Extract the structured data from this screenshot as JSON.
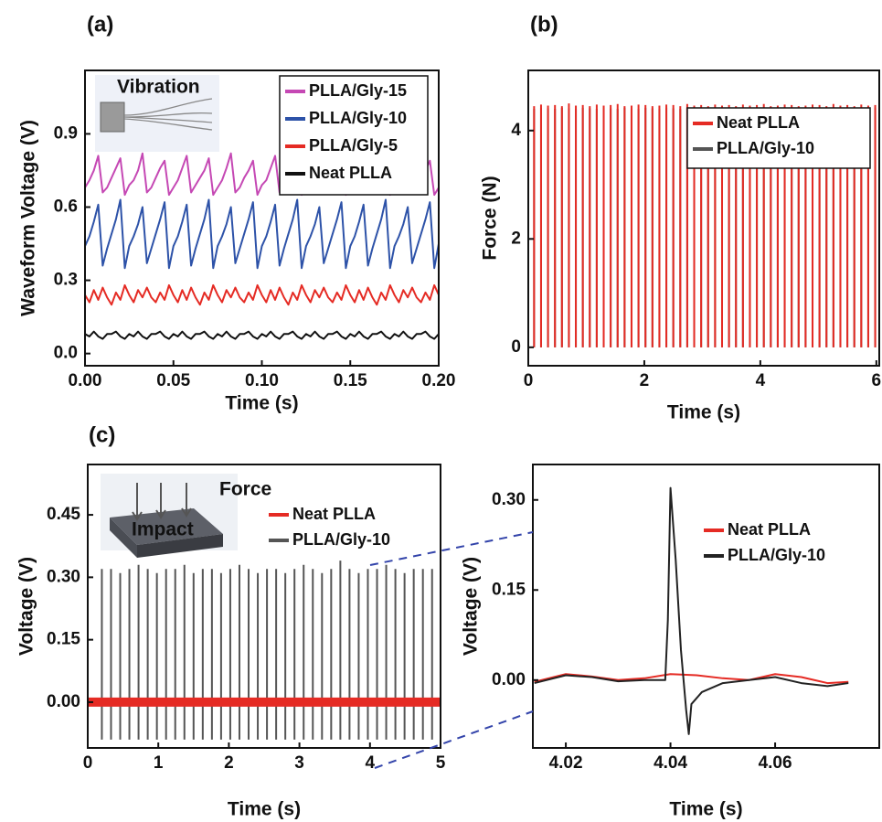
{
  "chart_data": [
    {
      "type": "line",
      "title": "(a)",
      "xlabel": "Time (s)",
      "ylabel": "Waveform Voltage (V)",
      "annotations": [
        "Vibration"
      ],
      "xlim": [
        0,
        0.2
      ],
      "ylim": [
        -0.05,
        1.16
      ],
      "xticks": [
        {
          "value": 0,
          "label": "0.00"
        },
        {
          "value": 0.05,
          "label": "0.05"
        },
        {
          "value": 0.1,
          "label": "0.10"
        },
        {
          "value": 0.15,
          "label": "0.15"
        },
        {
          "value": 0.2,
          "label": "0.20"
        }
      ],
      "yticks": [
        {
          "value": 0,
          "label": "0.0"
        },
        0.3,
        0.6,
        0.9
      ],
      "legend": "upper right",
      "x": [
        0,
        0.0025,
        0.005,
        0.0075,
        0.01,
        0.0125,
        0.015,
        0.0175,
        0.02,
        0.0225,
        0.025,
        0.0275,
        0.03,
        0.0325,
        0.035,
        0.0375,
        0.04,
        0.0425,
        0.045,
        0.0475,
        0.05,
        0.0525,
        0.055,
        0.0575,
        0.06,
        0.0625,
        0.065,
        0.0675,
        0.07,
        0.0725,
        0.075,
        0.0775,
        0.08,
        0.0825,
        0.085,
        0.0875,
        0.09,
        0.0925,
        0.095,
        0.0975,
        0.1,
        0.1025,
        0.105,
        0.1075,
        0.11,
        0.1125,
        0.115,
        0.1175,
        0.12,
        0.1225,
        0.125,
        0.1275,
        0.13,
        0.1325,
        0.135,
        0.1375,
        0.14,
        0.1425,
        0.145,
        0.1475,
        0.15,
        0.1525,
        0.155,
        0.1575,
        0.16,
        0.1625,
        0.165,
        0.1675,
        0.17,
        0.1725,
        0.175,
        0.1775,
        0.18,
        0.1825,
        0.185,
        0.1875,
        0.19,
        0.1925,
        0.195,
        0.1975,
        0.2
      ],
      "series": [
        {
          "name": "PLLA/Gly-15",
          "color": "#c548b4",
          "values": [
            0.68,
            0.71,
            0.75,
            0.81,
            0.66,
            0.68,
            0.72,
            0.76,
            0.8,
            0.65,
            0.69,
            0.71,
            0.75,
            0.82,
            0.66,
            0.68,
            0.72,
            0.76,
            0.79,
            0.65,
            0.68,
            0.71,
            0.76,
            0.81,
            0.66,
            0.69,
            0.72,
            0.75,
            0.8,
            0.65,
            0.68,
            0.71,
            0.76,
            0.82,
            0.66,
            0.68,
            0.72,
            0.75,
            0.79,
            0.65,
            0.69,
            0.71,
            0.76,
            0.81,
            0.66,
            0.68,
            0.72,
            0.75,
            0.8,
            0.65,
            0.68,
            0.71,
            0.76,
            0.82,
            0.66,
            0.69,
            0.72,
            0.75,
            0.79,
            0.65,
            0.68,
            0.71,
            0.76,
            0.81,
            0.66,
            0.68,
            0.72,
            0.75,
            0.8,
            0.65,
            0.69,
            0.71,
            0.76,
            0.82,
            0.66,
            0.68,
            0.72,
            0.75,
            0.79,
            0.65,
            0.68
          ]
        },
        {
          "name": "PLLA/Gly-10",
          "color": "#2d52a8",
          "values": [
            0.44,
            0.48,
            0.54,
            0.61,
            0.36,
            0.43,
            0.49,
            0.55,
            0.63,
            0.35,
            0.44,
            0.48,
            0.53,
            0.6,
            0.37,
            0.43,
            0.49,
            0.55,
            0.62,
            0.35,
            0.44,
            0.48,
            0.54,
            0.61,
            0.36,
            0.43,
            0.49,
            0.55,
            0.63,
            0.35,
            0.44,
            0.48,
            0.53,
            0.6,
            0.37,
            0.43,
            0.49,
            0.55,
            0.62,
            0.35,
            0.44,
            0.48,
            0.54,
            0.61,
            0.36,
            0.43,
            0.49,
            0.55,
            0.63,
            0.35,
            0.44,
            0.48,
            0.53,
            0.6,
            0.37,
            0.43,
            0.49,
            0.55,
            0.62,
            0.35,
            0.44,
            0.48,
            0.54,
            0.61,
            0.36,
            0.43,
            0.49,
            0.55,
            0.63,
            0.35,
            0.44,
            0.48,
            0.53,
            0.6,
            0.37,
            0.43,
            0.49,
            0.55,
            0.62,
            0.35,
            0.45
          ]
        },
        {
          "name": "PLLA/Gly-5",
          "color": "#e52b24",
          "values": [
            0.24,
            0.21,
            0.26,
            0.22,
            0.27,
            0.23,
            0.2,
            0.25,
            0.22,
            0.28,
            0.24,
            0.21,
            0.26,
            0.23,
            0.27,
            0.23,
            0.21,
            0.25,
            0.22,
            0.28,
            0.24,
            0.21,
            0.26,
            0.22,
            0.27,
            0.23,
            0.2,
            0.25,
            0.22,
            0.28,
            0.24,
            0.21,
            0.26,
            0.23,
            0.27,
            0.23,
            0.21,
            0.25,
            0.22,
            0.28,
            0.24,
            0.21,
            0.26,
            0.22,
            0.27,
            0.23,
            0.2,
            0.25,
            0.22,
            0.28,
            0.24,
            0.21,
            0.26,
            0.23,
            0.27,
            0.23,
            0.21,
            0.25,
            0.22,
            0.28,
            0.24,
            0.21,
            0.26,
            0.22,
            0.27,
            0.23,
            0.2,
            0.25,
            0.22,
            0.28,
            0.24,
            0.21,
            0.26,
            0.23,
            0.27,
            0.23,
            0.21,
            0.25,
            0.22,
            0.28,
            0.24
          ]
        },
        {
          "name": "Neat PLLA",
          "color": "#111111",
          "values": [
            0.08,
            0.07,
            0.09,
            0.07,
            0.06,
            0.08,
            0.08,
            0.09,
            0.07,
            0.06,
            0.08,
            0.07,
            0.09,
            0.07,
            0.06,
            0.08,
            0.08,
            0.09,
            0.07,
            0.06,
            0.08,
            0.07,
            0.09,
            0.07,
            0.06,
            0.08,
            0.08,
            0.09,
            0.07,
            0.06,
            0.08,
            0.07,
            0.09,
            0.07,
            0.06,
            0.08,
            0.08,
            0.09,
            0.07,
            0.06,
            0.08,
            0.07,
            0.09,
            0.07,
            0.06,
            0.08,
            0.08,
            0.09,
            0.07,
            0.06,
            0.08,
            0.07,
            0.09,
            0.07,
            0.06,
            0.08,
            0.08,
            0.09,
            0.07,
            0.06,
            0.08,
            0.07,
            0.09,
            0.07,
            0.06,
            0.08,
            0.08,
            0.09,
            0.07,
            0.06,
            0.08,
            0.07,
            0.09,
            0.07,
            0.06,
            0.08,
            0.08,
            0.09,
            0.07,
            0.06,
            0.08
          ]
        }
      ]
    },
    {
      "type": "spike",
      "title": "(b)",
      "xlabel": "Time (s)",
      "ylabel": "Force (N)",
      "xlim": [
        0,
        6.05
      ],
      "ylim": [
        -0.34,
        5.11
      ],
      "xticks": [
        0,
        2,
        4,
        6
      ],
      "yticks": [
        0,
        2,
        4
      ],
      "legend": "upper right",
      "x": [
        0.1,
        0.22,
        0.34,
        0.46,
        0.58,
        0.7,
        0.82,
        0.94,
        1.06,
        1.18,
        1.3,
        1.42,
        1.54,
        1.66,
        1.78,
        1.9,
        2.02,
        2.14,
        2.26,
        2.38,
        2.5,
        2.62,
        2.74,
        2.86,
        2.98,
        3.1,
        3.22,
        3.34,
        3.46,
        3.58,
        3.7,
        3.82,
        3.94,
        4.06,
        4.18,
        4.3,
        4.42,
        4.54,
        4.66,
        4.78,
        4.9,
        5.02,
        5.14,
        5.26,
        5.38,
        5.5,
        5.62,
        5.74,
        5.86,
        5.98
      ],
      "series": [
        {
          "name": "Neat PLLA",
          "color": "#e52b24",
          "values": [
            4.45,
            4.48,
            4.46,
            4.47,
            4.45,
            4.5,
            4.46,
            4.47,
            4.45,
            4.48,
            4.46,
            4.47,
            4.49,
            4.45,
            4.46,
            4.48,
            4.47,
            4.45,
            4.46,
            4.48,
            4.47,
            4.45,
            4.49,
            4.46,
            4.47,
            4.45,
            4.48,
            4.46,
            4.47,
            4.45,
            4.48,
            4.46,
            4.47,
            4.49,
            4.45,
            4.46,
            4.48,
            4.47,
            4.45,
            4.46,
            4.48,
            4.47,
            4.45,
            4.49,
            4.46,
            4.47,
            4.45,
            4.48,
            4.46,
            4.47
          ]
        },
        {
          "name": "PLLA/Gly-10",
          "color": "#555555",
          "values": [
            4.4,
            4.42,
            4.41,
            4.4,
            4.42,
            4.41,
            4.4,
            4.42,
            4.41,
            4.4,
            4.42,
            4.41,
            4.4,
            4.42,
            4.41,
            4.4,
            4.42,
            4.41,
            4.4,
            4.42,
            4.41,
            4.4,
            4.42,
            4.41,
            4.4,
            4.42,
            4.41,
            4.4,
            4.42,
            4.41,
            4.4,
            4.42,
            4.41,
            4.4,
            4.42,
            4.41,
            4.4,
            4.42,
            4.41,
            4.4,
            4.42,
            4.41,
            4.4,
            4.42,
            4.41,
            4.4,
            4.42,
            4.41,
            4.4,
            4.42
          ]
        }
      ]
    },
    {
      "type": "spike",
      "title": "(c)",
      "xlabel": "Time (s)",
      "ylabel": "Voltage (V)",
      "annotations": [
        "Force",
        "Impact"
      ],
      "xlim": [
        0,
        5
      ],
      "ylim": [
        -0.11,
        0.571
      ],
      "xticks": [
        0,
        1,
        2,
        3,
        4,
        5
      ],
      "yticks": [
        {
          "value": 0,
          "label": "0.00"
        },
        0.15,
        {
          "value": 0.3,
          "label": "0.30"
        },
        0.45
      ],
      "legend": "upper right",
      "series": [
        {
          "name": "Neat PLLA",
          "color": "#e52b24",
          "style": "line",
          "x": [
            0,
            5
          ],
          "values": [
            0,
            0
          ]
        },
        {
          "name": "PLLA/Gly-10",
          "color": "#555555",
          "x": [
            0.2,
            0.33,
            0.46,
            0.59,
            0.72,
            0.85,
            0.98,
            1.11,
            1.24,
            1.37,
            1.5,
            1.63,
            1.76,
            1.89,
            2.02,
            2.15,
            2.28,
            2.41,
            2.54,
            2.67,
            2.8,
            2.93,
            3.06,
            3.19,
            3.32,
            3.45,
            3.58,
            3.71,
            3.84,
            3.97,
            4.1,
            4.23,
            4.36,
            4.49,
            4.62,
            4.75,
            4.88
          ],
          "values": [
            0.32,
            0.32,
            0.31,
            0.32,
            0.33,
            0.32,
            0.31,
            0.32,
            0.32,
            0.33,
            0.31,
            0.32,
            0.32,
            0.31,
            0.32,
            0.33,
            0.32,
            0.31,
            0.32,
            0.32,
            0.31,
            0.32,
            0.33,
            0.32,
            0.31,
            0.32,
            0.34,
            0.32,
            0.31,
            0.32,
            0.32,
            0.33,
            0.32,
            0.31,
            0.32,
            0.32,
            0.32
          ],
          "lows": [
            -0.09,
            -0.09,
            -0.09,
            -0.09,
            -0.09,
            -0.09,
            -0.09,
            -0.09,
            -0.09,
            -0.09,
            -0.09,
            -0.09,
            -0.09,
            -0.09,
            -0.09,
            -0.09,
            -0.09,
            -0.09,
            -0.09,
            -0.09,
            -0.09,
            -0.09,
            -0.09,
            -0.09,
            -0.09,
            -0.09,
            -0.09,
            -0.09,
            -0.09,
            -0.09,
            -0.09,
            -0.09,
            -0.09,
            -0.09,
            -0.09,
            -0.09,
            -0.09
          ]
        }
      ]
    },
    {
      "type": "line",
      "xlabel": "Time (s)",
      "ylabel": "Voltage (V)",
      "xlim": [
        4.0137,
        4.0799
      ],
      "ylim": [
        -0.113,
        0.359
      ],
      "xticks": [
        4.02,
        4.04,
        4.06
      ],
      "yticks": [
        {
          "value": 0,
          "label": "0.00"
        },
        0.15,
        {
          "value": 0.3,
          "label": "0.30"
        }
      ],
      "legend": "upper right",
      "series": [
        {
          "name": "Neat PLLA",
          "color": "#e52b24",
          "x": [
            4.014,
            4.02,
            4.025,
            4.03,
            4.035,
            4.04,
            4.045,
            4.05,
            4.055,
            4.06,
            4.065,
            4.07,
            4.074
          ],
          "values": [
            -0.003,
            0.01,
            0.006,
            0,
            0.003,
            0.01,
            0.008,
            0.003,
            0,
            0.01,
            0.005,
            -0.005,
            -0.003
          ]
        },
        {
          "name": "PLLA/Gly-10",
          "color": "#222222",
          "x": [
            4.014,
            4.02,
            4.025,
            4.03,
            4.035,
            4.039,
            4.0395,
            4.04,
            4.041,
            4.042,
            4.043,
            4.0435,
            4.044,
            4.046,
            4.05,
            4.055,
            4.06,
            4.065,
            4.07,
            4.074
          ],
          "values": [
            -0.005,
            0.008,
            0.005,
            -0.002,
            0,
            0,
            0.1,
            0.32,
            0.2,
            0.05,
            -0.05,
            -0.09,
            -0.04,
            -0.02,
            -0.005,
            0,
            0.005,
            -0.005,
            -0.01,
            -0.005
          ]
        }
      ]
    }
  ]
}
